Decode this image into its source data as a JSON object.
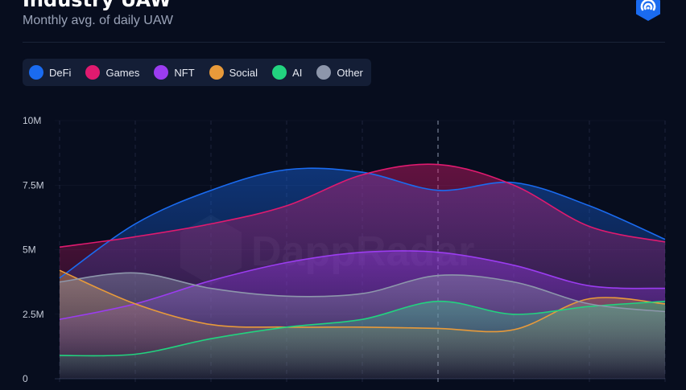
{
  "header": {
    "title": "Industry UAW",
    "subtitle": "Monthly avg. of daily UAW"
  },
  "watermark": {
    "text": "DappRadar"
  },
  "colors": {
    "background": "#070d1e",
    "grid": "#2a3450",
    "axis_text": "#c5cbd8"
  },
  "chart_data": {
    "type": "area",
    "title": "Industry UAW",
    "subtitle": "Monthly avg. of daily UAW",
    "xlabel": "",
    "ylabel": "",
    "ylim": [
      0,
      10000000
    ],
    "y_ticks": [
      {
        "value": 0,
        "label": "0"
      },
      {
        "value": 2500000,
        "label": "2.5M"
      },
      {
        "value": 5000000,
        "label": "5M"
      },
      {
        "value": 7500000,
        "label": "7.5M"
      },
      {
        "value": 10000000,
        "label": "10M"
      }
    ],
    "x": [
      0,
      1,
      2,
      3,
      4,
      5,
      6,
      7,
      8
    ],
    "highlighted_x": 5,
    "grid": true,
    "legend_position": "top-left",
    "series": [
      {
        "name": "DeFi",
        "color": "#1a6bf0",
        "values": [
          3900000,
          6000000,
          7300000,
          8100000,
          8000000,
          7300000,
          7600000,
          6700000,
          5400000
        ]
      },
      {
        "name": "Games",
        "color": "#e01a6f",
        "values": [
          5100000,
          5500000,
          6000000,
          6700000,
          7900000,
          8300000,
          7500000,
          5900000,
          5300000
        ]
      },
      {
        "name": "NFT",
        "color": "#9b3cf0",
        "values": [
          2300000,
          2900000,
          3800000,
          4500000,
          4900000,
          4900000,
          4400000,
          3600000,
          3500000
        ]
      },
      {
        "name": "Social",
        "color": "#e89a3a",
        "values": [
          4200000,
          2900000,
          2100000,
          2000000,
          2000000,
          1950000,
          1900000,
          3100000,
          2900000
        ]
      },
      {
        "name": "AI",
        "color": "#22d37f",
        "values": [
          900000,
          950000,
          1550000,
          2000000,
          2300000,
          3000000,
          2500000,
          2800000,
          3000000
        ]
      },
      {
        "name": "Other",
        "color": "#8d96ab",
        "values": [
          3750000,
          4100000,
          3500000,
          3200000,
          3300000,
          4000000,
          3750000,
          2900000,
          2600000
        ]
      }
    ]
  }
}
